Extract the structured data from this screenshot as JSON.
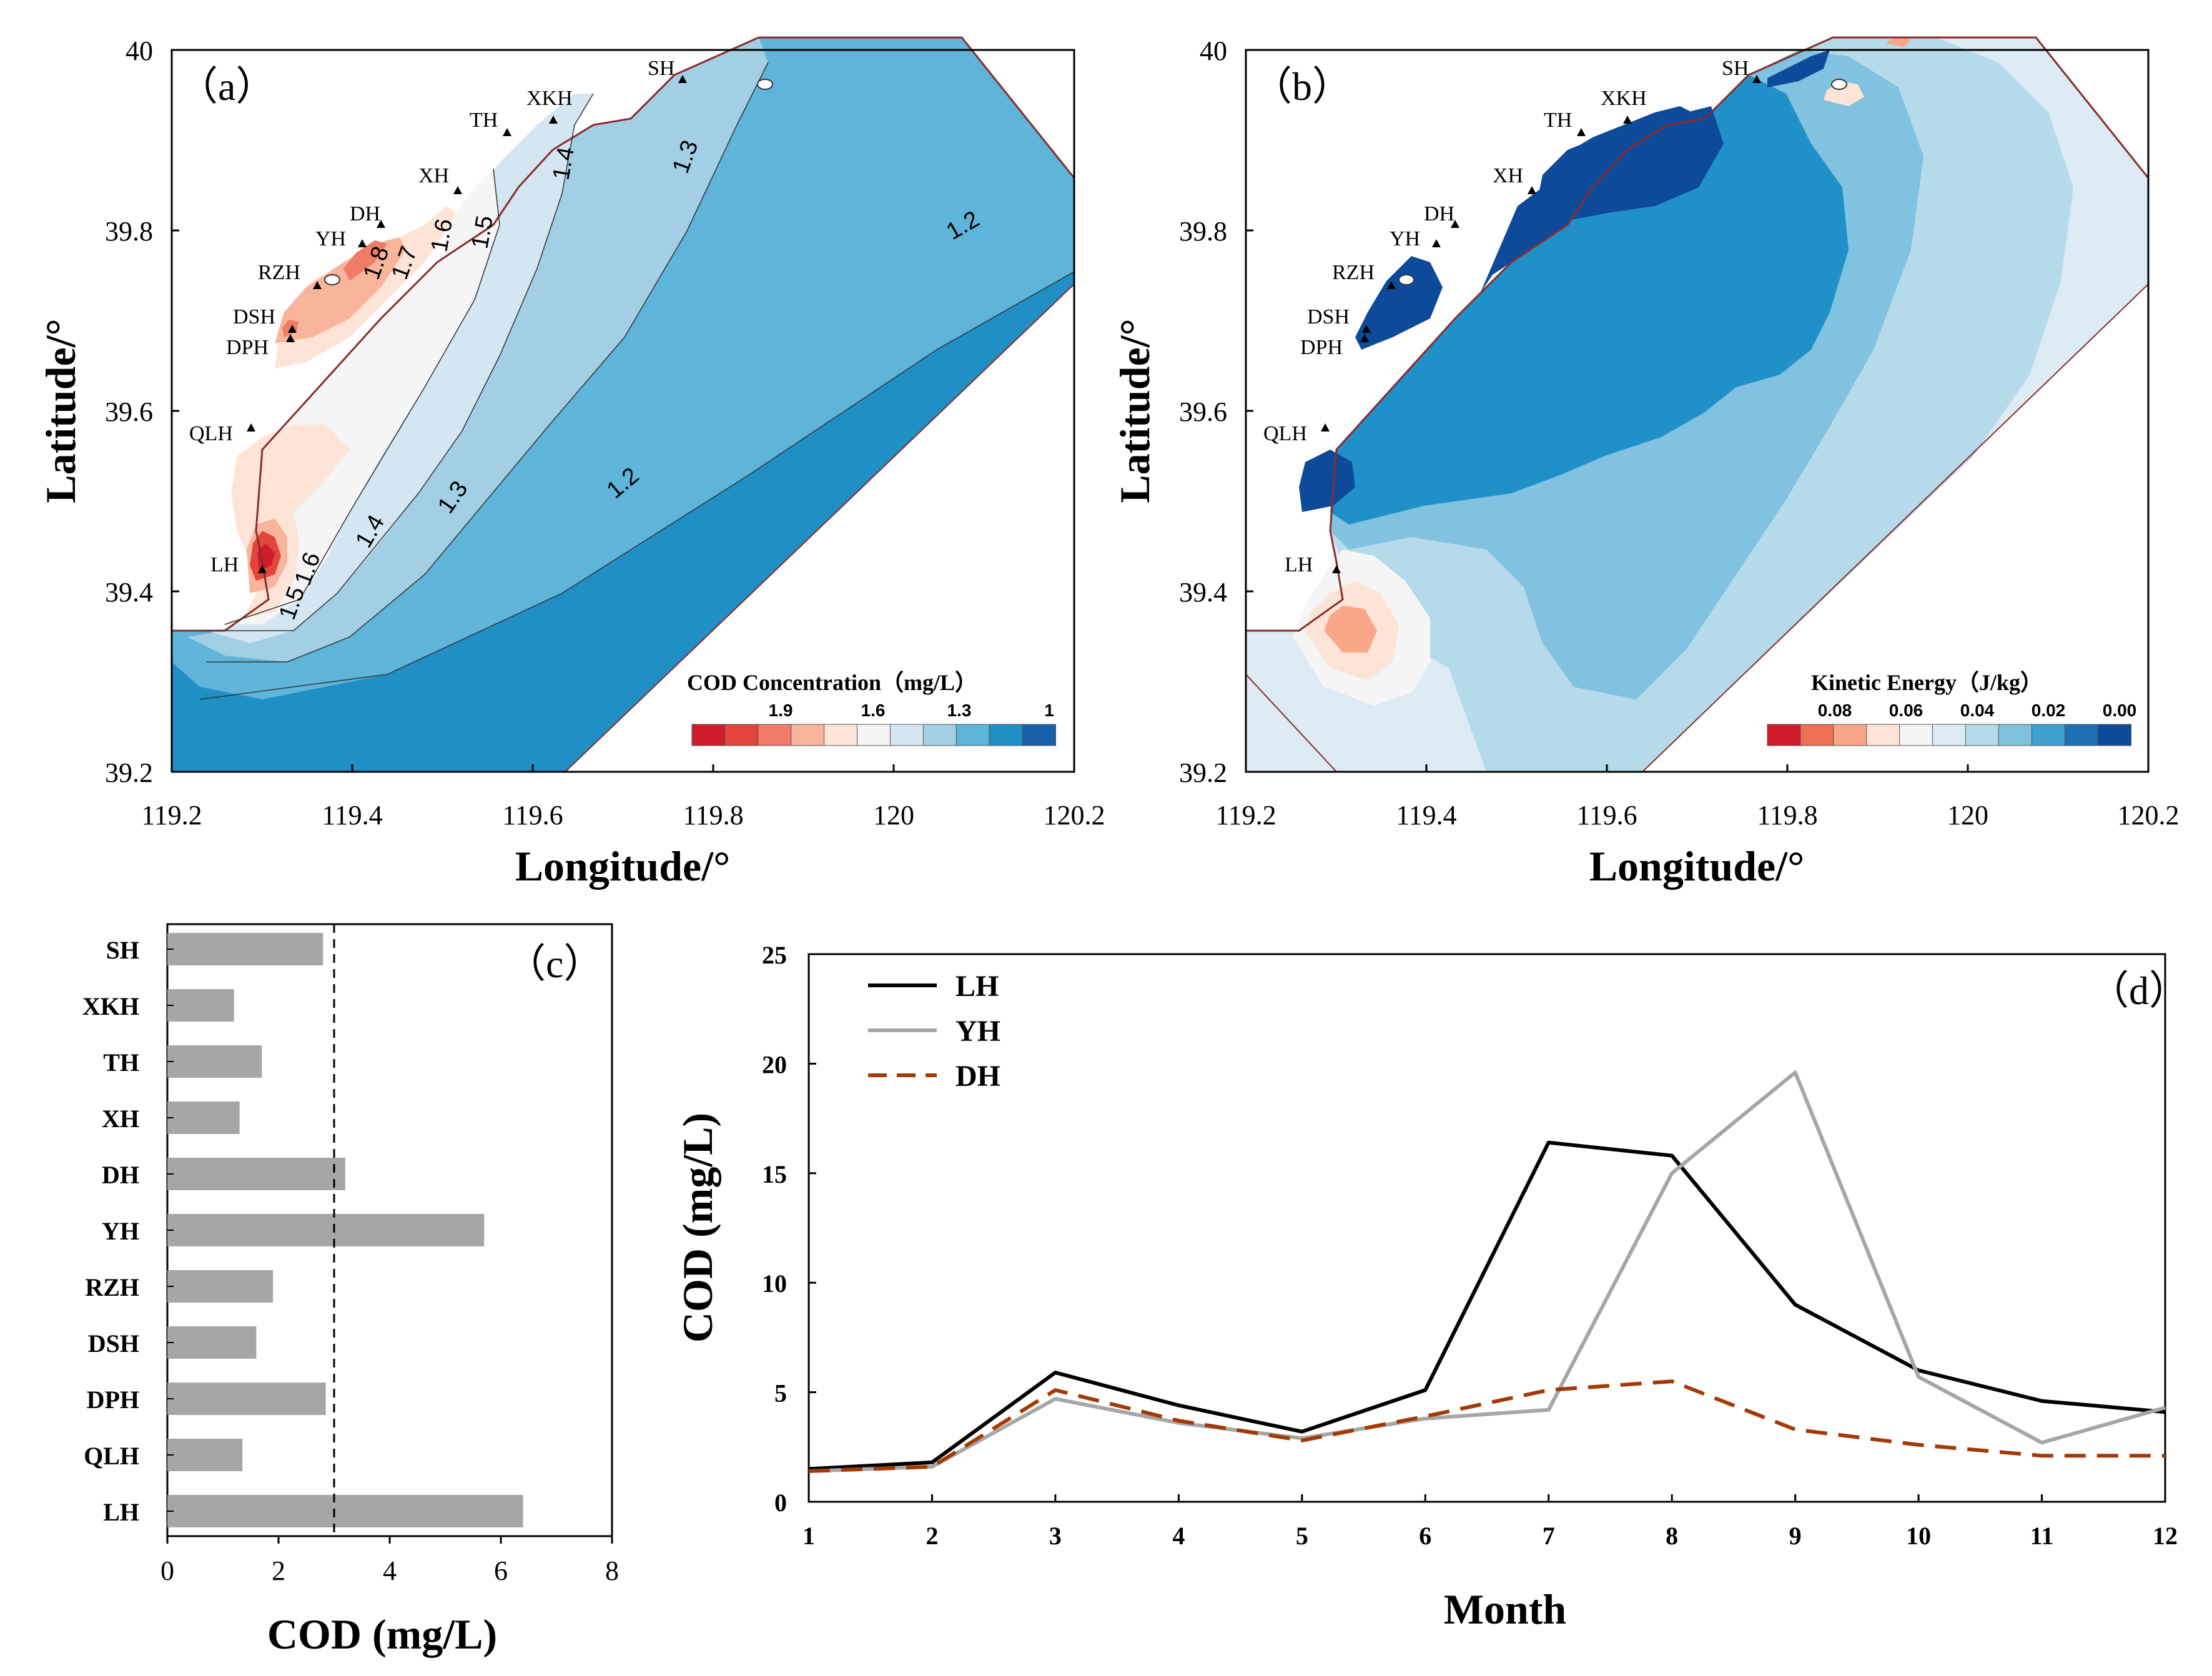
{
  "colors": {
    "cod_ramp": [
      "#cf1b2a",
      "#e2453c",
      "#f07c66",
      "#f8b59c",
      "#fde4d6",
      "#f5f5f5",
      "#d3e6f1",
      "#a3cfe5",
      "#5fb4d9",
      "#1f8fc6",
      "#1860a8"
    ],
    "ke_ramp": [
      "#cf1b2a",
      "#ef6f55",
      "#f8a889",
      "#fde4d6",
      "#f5f5f5",
      "#dcebf4",
      "#b5daea",
      "#80c2e0",
      "#3ea0cf",
      "#1f6fb4",
      "#0d4a9a"
    ],
    "bar": "#a6a6a6",
    "lh_line": "#000000",
    "yh_line": "#a6a6a6",
    "dh_line": "#a33a05"
  },
  "panel_a": {
    "label": "（a）",
    "xlabel": "Longitude/°",
    "ylabel": "Latitude/°",
    "xticks": [
      "119.2",
      "119.4",
      "119.6",
      "119.8",
      "120",
      "120.2"
    ],
    "yticks": [
      "39.2",
      "39.4",
      "39.6",
      "39.8",
      "40"
    ],
    "colorbar_title": "COD Concentration（mg/L）",
    "colorbar_ticks": [
      "1.9",
      "1.6",
      "1.3",
      "1"
    ],
    "contour_labels": [
      "1.2",
      "1.2",
      "1.3",
      "1.3",
      "1.4",
      "1.4",
      "1.5",
      "1.5",
      "1.6",
      "1.6",
      "1.7",
      "1.8"
    ],
    "sites": [
      "SH",
      "XKH",
      "TH",
      "XH",
      "DH",
      "YH",
      "RZH",
      "DSH",
      "DPH",
      "QLH",
      "LH"
    ]
  },
  "panel_b": {
    "label": "（b）",
    "xlabel": "Longitude/°",
    "ylabel": "Latitude/°",
    "xticks": [
      "119.2",
      "119.4",
      "119.6",
      "119.8",
      "120",
      "120.2"
    ],
    "yticks": [
      "39.2",
      "39.4",
      "39.6",
      "39.8",
      "40"
    ],
    "colorbar_title": "Kinetic Energy（J/kg）",
    "colorbar_ticks": [
      "0.08",
      "0.06",
      "0.04",
      "0.02",
      "0.00"
    ],
    "sites": [
      "SH",
      "XKH",
      "TH",
      "XH",
      "DH",
      "YH",
      "RZH",
      "DSH",
      "DPH",
      "QLH",
      "LH"
    ]
  },
  "chart_data": [
    {
      "type": "bar",
      "orientation": "horizontal",
      "panel": "（c）",
      "categories": [
        "SH",
        "XKH",
        "TH",
        "XH",
        "DH",
        "YH",
        "RZH",
        "DSH",
        "DPH",
        "QLH",
        "LH"
      ],
      "values": [
        2.8,
        1.2,
        1.7,
        1.3,
        3.2,
        5.7,
        1.9,
        1.6,
        2.85,
        1.35,
        6.4
      ],
      "reference_line": 3.0,
      "xlabel": "COD (mg/L)",
      "xlim": [
        0,
        8
      ],
      "xticks": [
        "0",
        "2",
        "4",
        "6",
        "8"
      ]
    },
    {
      "type": "line",
      "panel": "（d）",
      "x": [
        1,
        2,
        3,
        4,
        5,
        6,
        7,
        8,
        9,
        10,
        11,
        12
      ],
      "series": [
        {
          "name": "LH",
          "values": [
            1.5,
            1.8,
            5.9,
            4.4,
            3.2,
            5.1,
            16.4,
            15.8,
            9.0,
            6.0,
            4.6,
            4.1
          ]
        },
        {
          "name": "YH",
          "values": [
            1.4,
            1.6,
            4.7,
            3.6,
            2.9,
            3.8,
            4.2,
            15.0,
            19.6,
            5.7,
            2.7,
            4.3
          ]
        },
        {
          "name": "DH",
          "values": [
            1.4,
            1.6,
            5.1,
            3.7,
            2.8,
            3.9,
            5.1,
            5.5,
            3.3,
            2.6,
            2.1,
            2.1
          ]
        }
      ],
      "xlabel": "Month",
      "ylabel": "COD (mg/L)",
      "ylim": [
        0,
        25
      ],
      "yticks": [
        "0",
        "5",
        "10",
        "15",
        "20",
        "25"
      ],
      "xticks": [
        "1",
        "2",
        "3",
        "4",
        "5",
        "6",
        "7",
        "8",
        "9",
        "10",
        "11",
        "12"
      ]
    }
  ]
}
